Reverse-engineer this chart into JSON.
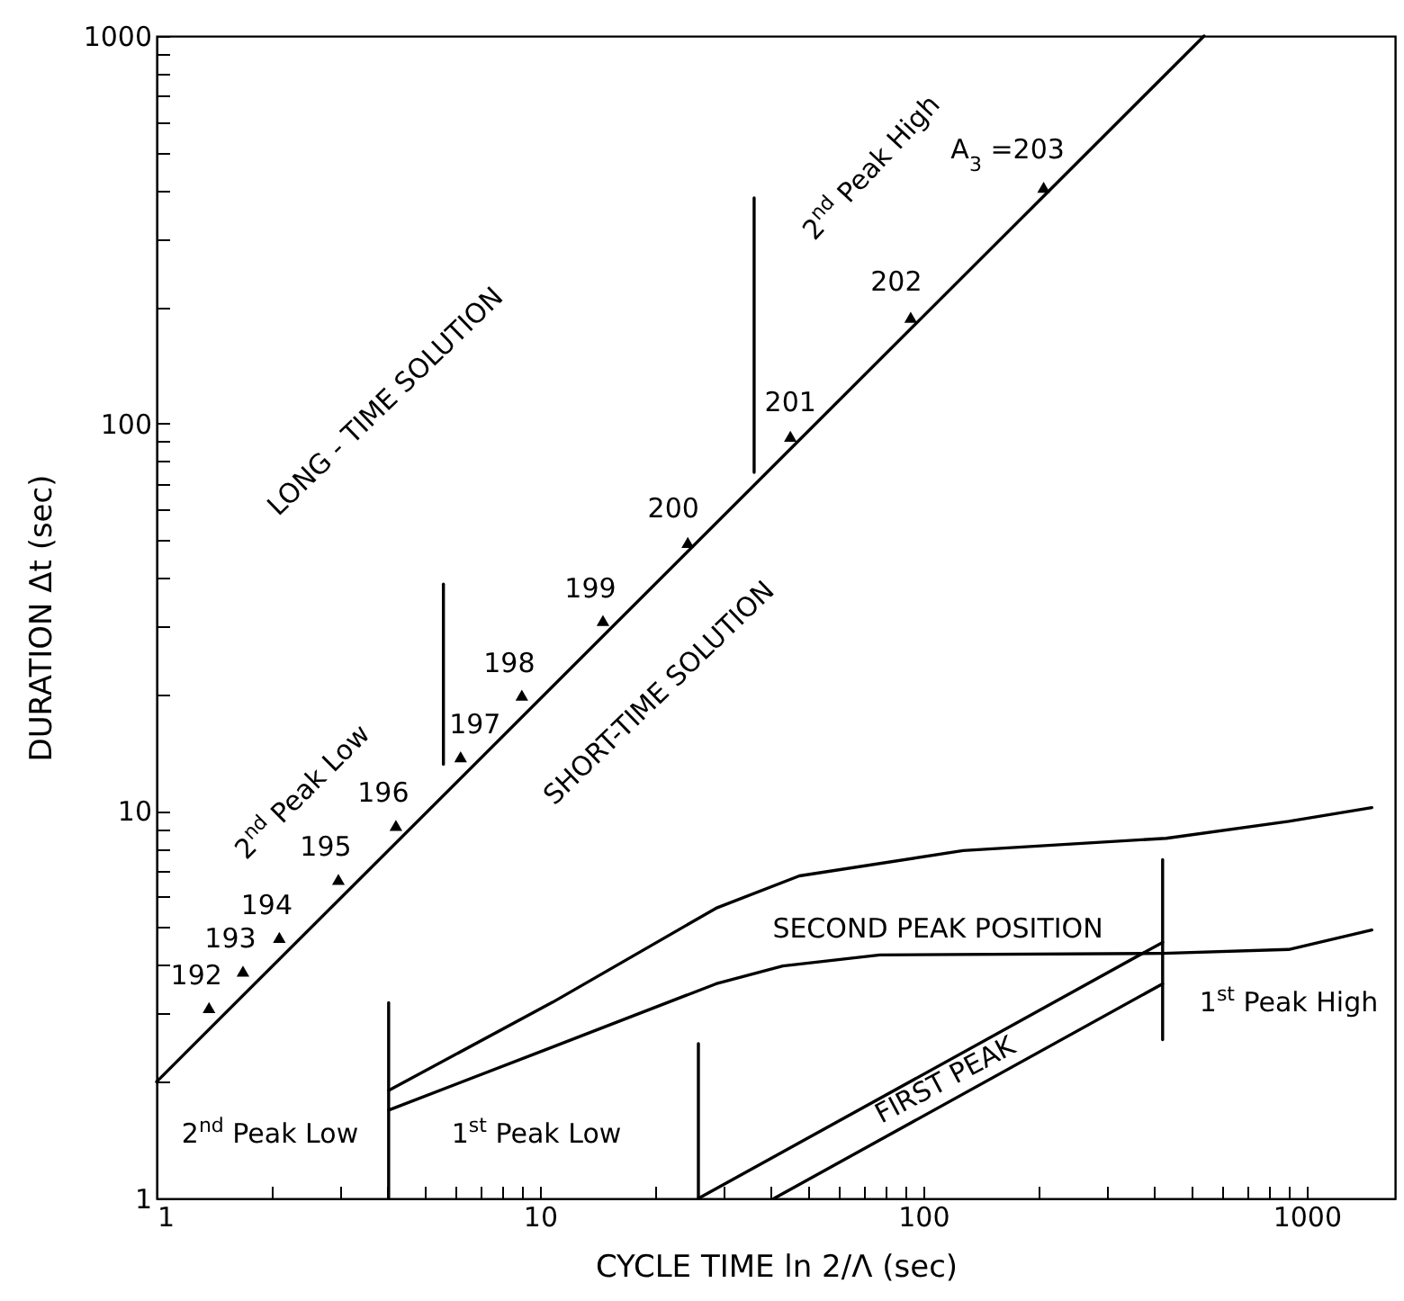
{
  "chart_data": {
    "type": "line",
    "xlabel": "CYCLE TIME ln 2/Λ (sec)",
    "ylabel": "DURATION Δt (sec)",
    "log": "xy",
    "xlim": [
      1,
      1700
    ],
    "ylim": [
      1,
      1000
    ],
    "xticks": [
      1,
      {
        "value": 2,
        "label": null
      },
      {
        "value": 3,
        "label": null
      },
      {
        "value": 4,
        "label": null
      },
      {
        "value": 5,
        "label": null
      },
      {
        "value": 6,
        "label": null
      },
      {
        "value": 7,
        "label": null
      },
      {
        "value": 8,
        "label": null
      },
      {
        "value": 9,
        "label": null
      },
      10,
      {
        "value": 20,
        "label": null
      },
      {
        "value": 30,
        "label": null
      },
      {
        "value": 40,
        "label": null
      },
      {
        "value": 50,
        "label": null
      },
      {
        "value": 60,
        "label": null
      },
      {
        "value": 70,
        "label": null
      },
      {
        "value": 80,
        "label": null
      },
      {
        "value": 90,
        "label": null
      },
      100,
      {
        "value": 200,
        "label": null
      },
      {
        "value": 300,
        "label": null
      },
      {
        "value": 400,
        "label": null
      },
      {
        "value": 500,
        "label": null
      },
      {
        "value": 600,
        "label": null
      },
      {
        "value": 700,
        "label": null
      },
      {
        "value": 800,
        "label": null
      },
      {
        "value": 900,
        "label": null
      },
      1000
    ],
    "yticks": [
      1,
      {
        "value": 2,
        "label": null
      },
      {
        "value": 3,
        "label": null
      },
      {
        "value": 4,
        "label": null
      },
      {
        "value": 5,
        "label": null
      },
      {
        "value": 6,
        "label": null
      },
      {
        "value": 7,
        "label": null
      },
      {
        "value": 8,
        "label": null
      },
      {
        "value": 9,
        "label": null
      },
      10,
      {
        "value": 20,
        "label": null
      },
      {
        "value": 30,
        "label": null
      },
      {
        "value": 40,
        "label": null
      },
      {
        "value": 50,
        "label": null
      },
      {
        "value": 60,
        "label": null
      },
      {
        "value": 70,
        "label": null
      },
      {
        "value": 80,
        "label": null
      },
      {
        "value": 90,
        "label": null
      },
      100,
      {
        "value": 200,
        "label": null
      },
      {
        "value": 300,
        "label": null
      },
      {
        "value": 400,
        "label": null
      },
      {
        "value": 500,
        "label": null
      },
      {
        "value": 600,
        "label": null
      },
      {
        "value": 700,
        "label": null
      },
      {
        "value": 800,
        "label": null
      },
      {
        "value": 900,
        "label": null
      },
      1000
    ],
    "grid": false,
    "series": [
      {
        "color": "#000000",
        "x": [
          1,
          540
        ],
        "values": [
          2,
          1000
        ]
      },
      {
        "type": "scatter",
        "marker": "triangle",
        "color": "#000000",
        "x": [
          1.37,
          1.68,
          2.09,
          2.98,
          4.21,
          6.21,
          8.97,
          14.6,
          24.3,
          45,
          92.7,
          206
        ],
        "values": [
          3.11,
          3.86,
          4.72,
          6.66,
          9.18,
          13.8,
          19.9,
          31,
          49.3,
          92.7,
          188,
          407
        ]
      },
      {
        "type": "line",
        "color": "#000000",
        "x": [
          4.03,
          10.8,
          28.8,
          47.5,
          127,
          430,
          898,
          1479
        ],
        "values": [
          1.9,
          3.21,
          5.61,
          6.8,
          7.9,
          8.5,
          9.4,
          10.2
        ]
      },
      {
        "type": "line",
        "color": "#000000",
        "x": [
          4.03,
          10.8,
          28.8,
          43,
          77,
          421,
          898,
          1479
        ],
        "values": [
          1.69,
          2.46,
          3.58,
          3.98,
          4.25,
          4.29,
          4.39,
          4.93
        ]
      },
      {
        "type": "line",
        "color": "#000000",
        "x": [
          25.9,
          421
        ],
        "values": [
          1,
          4.58
        ]
      },
      {
        "type": "line",
        "color": "#000000",
        "x": [
          40.8,
          421
        ],
        "values": [
          1,
          3.58
        ]
      },
      {
        "type": "line",
        "color": "#000000",
        "x": [
          5.6,
          5.6
        ],
        "values": [
          13.2,
          38.5
        ]
      },
      {
        "type": "line",
        "color": "#000000",
        "x": [
          36.2,
          36.2
        ],
        "values": [
          74.8,
          382
        ]
      },
      {
        "type": "line",
        "color": "#000000",
        "x": [
          4.03,
          4.03
        ],
        "values": [
          1,
          3.2
        ]
      },
      {
        "type": "line",
        "color": "#000000",
        "x": [
          25.9,
          25.9
        ],
        "values": [
          1,
          2.51
        ]
      },
      {
        "type": "line",
        "color": "#000000",
        "x": [
          421,
          421
        ],
        "values": [
          2.57,
          7.49
        ]
      }
    ],
    "annotations": [
      "LONG - TIME SOLUTION",
      "SHORT-TIME SOLUTION",
      "2$^{nd}$ Peak Low",
      "2$^{nd}$ Peak High",
      {
        "text": "192",
        "x": 1.37,
        "y": 3.11
      },
      {
        "text": "193",
        "x": 1.68,
        "y": 3.86
      },
      {
        "text": "194",
        "x": 2.09,
        "y": 4.72
      },
      {
        "text": "195",
        "x": 2.98,
        "y": 6.66
      },
      {
        "text": "196",
        "x": 4.21,
        "y": 9.18
      },
      {
        "text": "197",
        "x": 6.21,
        "y": 13.8
      },
      {
        "text": "198",
        "x": 8.97,
        "y": 19.9
      },
      {
        "text": "199",
        "x": 14.6,
        "y": 31
      },
      {
        "text": "200",
        "x": 24.3,
        "y": 49.3
      },
      {
        "text": "201",
        "x": 45,
        "y": 92.7
      },
      {
        "text": "202",
        "x": 92.7,
        "y": 188
      },
      {
        "text": "A$_{3}$ =203",
        "x": 206,
        "y": 407
      },
      "SECOND PEAK POSITION",
      "FIRST PEAK",
      "2$^{nd}$ Peak Low",
      "1$^{st}$ Peak Low",
      "1$^{st}$ Peak High"
    ]
  }
}
